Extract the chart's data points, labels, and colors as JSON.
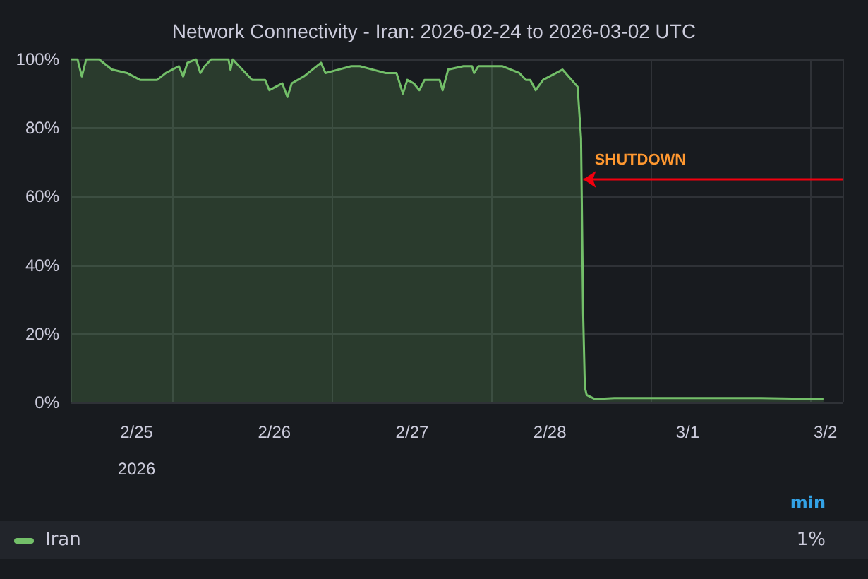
{
  "chart_data": {
    "type": "area",
    "title": "Network Connectivity - Iran: 2026-02-24 to 2026-03-02 UTC",
    "series": [
      {
        "name": "Iran",
        "color": "#73bf69",
        "x": [
          "2026-02-24T12:35",
          "2026-02-24T13:43",
          "2026-02-24T14:28",
          "2026-02-24T15:13",
          "2026-02-24T17:28",
          "2026-02-24T18:58",
          "2026-02-24T19:43",
          "2026-02-24T22:21",
          "2026-02-25T00:36",
          "2026-02-25T02:51",
          "2026-02-25T03:36",
          "2026-02-25T05:06",
          "2026-02-25T07:22",
          "2026-02-25T08:07",
          "2026-02-25T08:52",
          "2026-02-25T10:22",
          "2026-02-25T11:07",
          "2026-02-25T11:52",
          "2026-02-25T13:00",
          "2026-02-25T16:00",
          "2026-02-25T16:22",
          "2026-02-25T16:45",
          "2026-02-25T17:52",
          "2026-02-25T20:08",
          "2026-02-25T21:15",
          "2026-02-25T22:23",
          "2026-02-25T23:08",
          "2026-02-26T00:15",
          "2026-02-26T01:23",
          "2026-02-26T02:17",
          "2026-02-26T03:02",
          "2026-02-26T05:08",
          "2026-02-26T08:08",
          "2026-02-26T08:54",
          "2026-02-26T11:09",
          "2026-02-26T13:24",
          "2026-02-26T14:54",
          "2026-02-26T17:09",
          "2026-02-26T19:24",
          "2026-02-26T21:17",
          "2026-02-26T22:24",
          "2026-02-26T23:10",
          "2026-02-27T00:17",
          "2026-02-27T01:16",
          "2026-02-27T02:10",
          "2026-02-27T04:48",
          "2026-02-27T05:19",
          "2026-02-27T06:17",
          "2026-02-27T08:56",
          "2026-02-27T10:26",
          "2026-02-27T10:48",
          "2026-02-27T11:33",
          "2026-02-27T15:41",
          "2026-02-27T18:41",
          "2026-02-27T19:49",
          "2026-02-27T20:34",
          "2026-02-27T21:32",
          "2026-02-27T22:49",
          "2026-02-28T02:12",
          "2026-02-28T04:50",
          "2026-02-28T05:26",
          "2026-02-28T05:48",
          "2026-02-28T06:06",
          "2026-02-28T06:25",
          "2026-02-28T07:50",
          "2026-02-28T11:13",
          "2026-02-28T21:45",
          "2026-03-01T12:47",
          "2026-03-01T23:40"
        ],
        "values": [
          100,
          100,
          95,
          100,
          100,
          98,
          97,
          96,
          94,
          94,
          94,
          96,
          98,
          95,
          99,
          100,
          96,
          98,
          100,
          100,
          97,
          100,
          98,
          94,
          94,
          94,
          91,
          92,
          93,
          89,
          93,
          95,
          99,
          96,
          97,
          98,
          98,
          97,
          96,
          96,
          90,
          94,
          93,
          91,
          94,
          94,
          91,
          97,
          98,
          98,
          96,
          98,
          98,
          96,
          94,
          94,
          91,
          94,
          97,
          92,
          77,
          26,
          4.4,
          2.2,
          1,
          1.3,
          1.3,
          1.3,
          1
        ]
      }
    ],
    "xlim": [
      "2026-02-24T12:30",
      "2026-03-02T03:00"
    ],
    "xticks": [
      {
        "value": "2026-02-25",
        "label": "2/25\n2026"
      },
      {
        "value": "2026-02-26",
        "label": "2/26"
      },
      {
        "value": "2026-02-27",
        "label": "2/27"
      },
      {
        "value": "2026-02-28",
        "label": "2/28"
      },
      {
        "value": "2026-03-01",
        "label": "3/1"
      },
      {
        "value": "2026-03-02",
        "label": "3/2"
      }
    ],
    "ylim": [
      0,
      100
    ],
    "yticks": [
      {
        "value": 0,
        "label": "0%"
      },
      {
        "value": 20,
        "label": "20%"
      },
      {
        "value": 40,
        "label": "40%"
      },
      {
        "value": 60,
        "label": "60%"
      },
      {
        "value": 80,
        "label": "80%"
      },
      {
        "value": 100,
        "label": "100%"
      }
    ],
    "grid": true,
    "legend": "bottom",
    "marker": "none",
    "line_style": "solid",
    "annotations": [
      {
        "text": "SHUTDOWN",
        "x": "2026-02-28T05:50",
        "y": 65
      },
      "min",
      "1%"
    ]
  }
}
